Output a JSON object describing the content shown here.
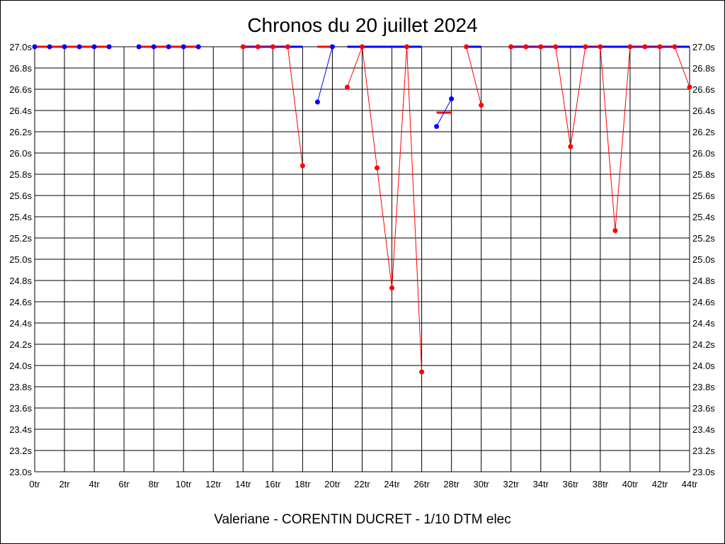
{
  "chart_data": {
    "type": "line",
    "title": "Chronos du 20 juillet 2024",
    "subtitle": "Valeriane - CORENTIN DUCRET - 1/10 DTM elec",
    "xlabel": "",
    "ylabel": "",
    "xlim": [
      0,
      44
    ],
    "ylim": [
      23.0,
      27.0
    ],
    "grid": true,
    "x_tick_labels": [
      "0tr",
      "2tr",
      "4tr",
      "6tr",
      "8tr",
      "10tr",
      "12tr",
      "14tr",
      "16tr",
      "18tr",
      "20tr",
      "22tr",
      "24tr",
      "26tr",
      "28tr",
      "30tr",
      "32tr",
      "34tr",
      "36tr",
      "38tr",
      "40tr",
      "42tr",
      "44tr"
    ],
    "y_tick_labels": [
      "27.0s",
      "26.8s",
      "26.6s",
      "26.4s",
      "26.2s",
      "26.0s",
      "25.8s",
      "25.6s",
      "25.4s",
      "25.2s",
      "25.0s",
      "24.8s",
      "24.6s",
      "24.4s",
      "24.2s",
      "24.0s",
      "23.8s",
      "23.6s",
      "23.4s",
      "23.2s",
      "23.0s"
    ],
    "colors": {
      "red": "#ff0000",
      "blue": "#0000ff",
      "grid": "#000000"
    },
    "segments": [
      {
        "color": "red",
        "points": [
          [
            0,
            27.0
          ],
          [
            1,
            27.0
          ],
          [
            2,
            27.0
          ],
          [
            3,
            27.0
          ],
          [
            4,
            27.0
          ],
          [
            5,
            27.0
          ]
        ]
      },
      {
        "color": "red",
        "points": [
          [
            7,
            27.0
          ],
          [
            8,
            27.0
          ],
          [
            9,
            27.0
          ],
          [
            10,
            27.0
          ],
          [
            11,
            27.0
          ]
        ]
      },
      {
        "color": "red",
        "points": [
          [
            14,
            27.0
          ],
          [
            15,
            27.0
          ],
          [
            16,
            27.0
          ],
          [
            17,
            27.0
          ],
          [
            18,
            25.88
          ]
        ]
      },
      {
        "color": "blue",
        "points": [
          [
            19,
            26.48
          ],
          [
            20,
            27.0
          ]
        ]
      },
      {
        "color": "red",
        "points": [
          [
            21,
            26.62
          ],
          [
            22,
            27.0
          ],
          [
            23,
            25.86
          ],
          [
            24,
            24.73
          ],
          [
            25,
            27.0
          ],
          [
            26,
            23.94
          ]
        ]
      },
      {
        "color": "blue",
        "points": [
          [
            27,
            26.25
          ],
          [
            28,
            26.51
          ]
        ]
      },
      {
        "color": "red",
        "points": [
          [
            29,
            27.0
          ],
          [
            30,
            26.45
          ]
        ]
      },
      {
        "color": "red",
        "points": [
          [
            32,
            27.0
          ],
          [
            33,
            27.0
          ],
          [
            34,
            27.0
          ],
          [
            35,
            27.0
          ],
          [
            36,
            26.06
          ],
          [
            37,
            27.0
          ],
          [
            38,
            27.0
          ],
          [
            39,
            25.27
          ],
          [
            40,
            27.0
          ],
          [
            41,
            27.0
          ],
          [
            42,
            27.0
          ],
          [
            43,
            27.0
          ],
          [
            44,
            26.62
          ]
        ]
      }
    ],
    "markers": [
      {
        "x": 0,
        "y": 27.0,
        "color": "blue"
      },
      {
        "x": 1,
        "y": 27.0,
        "color": "blue"
      },
      {
        "x": 2,
        "y": 27.0,
        "color": "blue"
      },
      {
        "x": 3,
        "y": 27.0,
        "color": "blue"
      },
      {
        "x": 4,
        "y": 27.0,
        "color": "blue"
      },
      {
        "x": 5,
        "y": 27.0,
        "color": "blue"
      },
      {
        "x": 7,
        "y": 27.0,
        "color": "blue"
      },
      {
        "x": 8,
        "y": 27.0,
        "color": "blue"
      },
      {
        "x": 9,
        "y": 27.0,
        "color": "blue"
      },
      {
        "x": 10,
        "y": 27.0,
        "color": "blue"
      },
      {
        "x": 11,
        "y": 27.0,
        "color": "blue"
      },
      {
        "x": 14,
        "y": 27.0,
        "color": "red"
      },
      {
        "x": 15,
        "y": 27.0,
        "color": "red"
      },
      {
        "x": 16,
        "y": 27.0,
        "color": "red"
      },
      {
        "x": 17,
        "y": 27.0,
        "color": "red"
      },
      {
        "x": 18,
        "y": 25.88,
        "color": "red"
      },
      {
        "x": 19,
        "y": 26.48,
        "color": "blue"
      },
      {
        "x": 20,
        "y": 27.0,
        "color": "blue"
      },
      {
        "x": 21,
        "y": 26.62,
        "color": "red"
      },
      {
        "x": 22,
        "y": 27.0,
        "color": "red"
      },
      {
        "x": 23,
        "y": 25.86,
        "color": "red"
      },
      {
        "x": 24,
        "y": 24.73,
        "color": "red"
      },
      {
        "x": 25,
        "y": 27.0,
        "color": "red"
      },
      {
        "x": 26,
        "y": 23.94,
        "color": "red"
      },
      {
        "x": 27,
        "y": 26.25,
        "color": "blue"
      },
      {
        "x": 28,
        "y": 26.51,
        "color": "blue"
      },
      {
        "x": 29,
        "y": 27.0,
        "color": "red"
      },
      {
        "x": 30,
        "y": 26.45,
        "color": "red"
      },
      {
        "x": 32,
        "y": 27.0,
        "color": "red"
      },
      {
        "x": 33,
        "y": 27.0,
        "color": "red"
      },
      {
        "x": 34,
        "y": 27.0,
        "color": "red"
      },
      {
        "x": 35,
        "y": 27.0,
        "color": "red"
      },
      {
        "x": 36,
        "y": 26.06,
        "color": "red"
      },
      {
        "x": 37,
        "y": 27.0,
        "color": "red"
      },
      {
        "x": 38,
        "y": 27.0,
        "color": "red"
      },
      {
        "x": 39,
        "y": 25.27,
        "color": "red"
      },
      {
        "x": 40,
        "y": 27.0,
        "color": "red"
      },
      {
        "x": 41,
        "y": 27.0,
        "color": "red"
      },
      {
        "x": 42,
        "y": 27.0,
        "color": "red"
      },
      {
        "x": 43,
        "y": 27.0,
        "color": "red"
      },
      {
        "x": 44,
        "y": 26.62,
        "color": "red"
      }
    ],
    "reference_lines": [
      {
        "color": "red",
        "x0": 0,
        "x1": 5,
        "y": 27.0
      },
      {
        "color": "red",
        "x0": 7,
        "x1": 11,
        "y": 27.0
      },
      {
        "color": "blue",
        "x0": 14,
        "x1": 18,
        "y": 27.0
      },
      {
        "color": "red",
        "x0": 19,
        "x1": 20,
        "y": 27.0
      },
      {
        "color": "blue",
        "x0": 21,
        "x1": 26,
        "y": 27.0
      },
      {
        "color": "red",
        "x0": 27,
        "x1": 28,
        "y": 26.38
      },
      {
        "color": "blue",
        "x0": 29,
        "x1": 30,
        "y": 27.0
      },
      {
        "color": "blue",
        "x0": 32,
        "x1": 44,
        "y": 27.0
      }
    ]
  }
}
